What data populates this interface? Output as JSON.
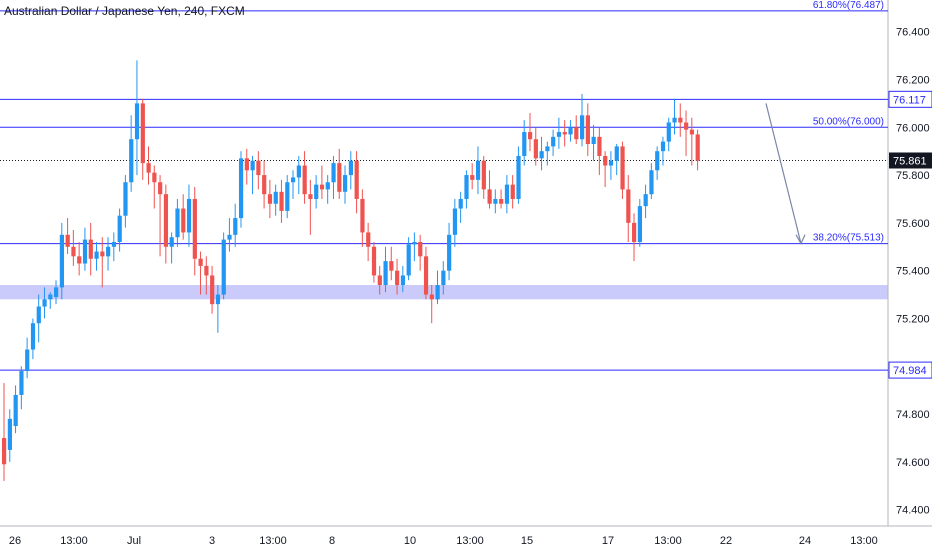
{
  "header": {
    "symbol_title": "Australian Dollar / Japanese Yen, 240, FXCM"
  },
  "colors": {
    "bull": "#2196f3",
    "bear": "#ef5350",
    "level_line": "#2b2bff",
    "zone_fill": "#c5c5fb",
    "current_price_bg": "#131722",
    "axis_text": "#131722",
    "arrow": "#7c86a8"
  },
  "chart_data": {
    "type": "candlestick",
    "x_tick_labels": [
      "26",
      "13:00",
      "Jul",
      "3",
      "13:00",
      "8",
      "10",
      "13:00",
      "15",
      "17",
      "13:00",
      "22",
      "24",
      "13:00"
    ],
    "y_tick_labels": [
      "74.400",
      "74.600",
      "74.800",
      "75.200",
      "75.400",
      "75.600",
      "75.800",
      "76.000",
      "76.200",
      "76.400"
    ],
    "ylim": [
      74.34,
      76.52
    ],
    "horizontal_levels": [
      {
        "name": "resistance",
        "value": 76.117,
        "label": "76.117"
      },
      {
        "name": "fib-50",
        "value": 76.0,
        "label": "50.00%(76.000)"
      },
      {
        "name": "fib-38",
        "value": 75.513,
        "label": "38.20%(75.513)"
      },
      {
        "name": "support",
        "value": 74.984,
        "label": "74.984"
      },
      {
        "name": "fib-61",
        "value": 76.487,
        "label": "61.80%(76.487)"
      }
    ],
    "current_price": {
      "value": 75.861,
      "label": "75.861"
    },
    "zone": {
      "from": 75.28,
      "to": 75.34
    },
    "projection_arrow": {
      "from_value": 76.1,
      "to_value": 75.513
    },
    "candles": [
      [
        74.7,
        74.93,
        74.52,
        74.59
      ],
      [
        74.65,
        74.82,
        74.6,
        74.78
      ],
      [
        74.75,
        74.92,
        74.72,
        74.88
      ],
      [
        74.88,
        75.0,
        74.82,
        74.98
      ],
      [
        74.98,
        75.12,
        74.95,
        75.07
      ],
      [
        75.07,
        75.2,
        75.03,
        75.18
      ],
      [
        75.18,
        75.3,
        75.1,
        75.25
      ],
      [
        75.25,
        75.33,
        75.2,
        75.28
      ],
      [
        75.28,
        75.31,
        75.24,
        75.3
      ],
      [
        75.29,
        75.36,
        75.26,
        75.33
      ],
      [
        75.33,
        75.6,
        75.28,
        75.55
      ],
      [
        75.55,
        75.62,
        75.47,
        75.5
      ],
      [
        75.5,
        75.57,
        75.42,
        75.46
      ],
      [
        75.46,
        75.52,
        75.38,
        75.43
      ],
      [
        75.43,
        75.58,
        75.4,
        75.53
      ],
      [
        75.53,
        75.6,
        75.38,
        75.45
      ],
      [
        75.45,
        75.52,
        75.4,
        75.48
      ],
      [
        75.48,
        75.54,
        75.33,
        75.46
      ],
      [
        75.46,
        75.54,
        75.4,
        75.5
      ],
      [
        75.5,
        75.56,
        75.44,
        75.52
      ],
      [
        75.52,
        75.66,
        75.48,
        75.63
      ],
      [
        75.63,
        75.8,
        75.58,
        75.77
      ],
      [
        75.77,
        76.05,
        75.73,
        75.95
      ],
      [
        75.95,
        76.28,
        75.8,
        76.1
      ],
      [
        76.1,
        76.12,
        75.78,
        75.85
      ],
      [
        75.85,
        75.92,
        75.76,
        75.81
      ],
      [
        75.81,
        75.84,
        75.66,
        75.77
      ],
      [
        75.77,
        75.8,
        75.46,
        75.72
      ],
      [
        75.72,
        75.76,
        75.43,
        75.5
      ],
      [
        75.5,
        75.56,
        75.43,
        75.54
      ],
      [
        75.54,
        75.7,
        75.5,
        75.66
      ],
      [
        75.66,
        75.72,
        75.53,
        75.56
      ],
      [
        75.56,
        75.76,
        75.5,
        75.7
      ],
      [
        75.7,
        75.75,
        75.38,
        75.45
      ],
      [
        75.45,
        75.48,
        75.3,
        75.42
      ],
      [
        75.42,
        75.46,
        75.3,
        75.38
      ],
      [
        75.38,
        75.42,
        75.22,
        75.26
      ],
      [
        75.26,
        75.34,
        75.14,
        75.3
      ],
      [
        75.3,
        75.56,
        75.28,
        75.53
      ],
      [
        75.53,
        75.62,
        75.48,
        75.55
      ],
      [
        75.55,
        75.68,
        75.5,
        75.62
      ],
      [
        75.62,
        75.9,
        75.58,
        75.87
      ],
      [
        75.87,
        75.91,
        75.76,
        75.82
      ],
      [
        75.82,
        75.88,
        75.72,
        75.86
      ],
      [
        75.86,
        75.9,
        75.74,
        75.8
      ],
      [
        75.8,
        75.86,
        75.66,
        75.72
      ],
      [
        75.72,
        75.78,
        75.62,
        75.68
      ],
      [
        75.68,
        75.76,
        75.63,
        75.73
      ],
      [
        75.73,
        75.78,
        75.6,
        75.65
      ],
      [
        75.65,
        75.8,
        75.62,
        75.77
      ],
      [
        75.77,
        75.82,
        75.7,
        75.79
      ],
      [
        75.79,
        75.88,
        75.72,
        75.84
      ],
      [
        75.84,
        75.9,
        75.68,
        75.72
      ],
      [
        75.72,
        75.78,
        75.55,
        75.7
      ],
      [
        75.7,
        75.8,
        75.66,
        75.76
      ],
      [
        75.76,
        75.84,
        75.7,
        75.74
      ],
      [
        75.74,
        75.8,
        75.68,
        75.77
      ],
      [
        75.77,
        75.88,
        75.7,
        75.85
      ],
      [
        75.85,
        75.91,
        75.7,
        75.73
      ],
      [
        75.73,
        75.84,
        75.68,
        75.8
      ],
      [
        75.8,
        75.9,
        75.74,
        75.86
      ],
      [
        75.86,
        75.9,
        75.64,
        75.7
      ],
      [
        75.7,
        75.74,
        75.5,
        75.56
      ],
      [
        75.56,
        75.6,
        75.44,
        75.5
      ],
      [
        75.5,
        75.52,
        75.35,
        75.38
      ],
      [
        75.38,
        75.42,
        75.3,
        75.34
      ],
      [
        75.34,
        75.5,
        75.31,
        75.44
      ],
      [
        75.44,
        75.5,
        75.36,
        75.4
      ],
      [
        75.4,
        75.45,
        75.3,
        75.34
      ],
      [
        75.34,
        75.42,
        75.31,
        75.38
      ],
      [
        75.38,
        75.54,
        75.36,
        75.51
      ],
      [
        75.51,
        75.56,
        75.44,
        75.52
      ],
      [
        75.52,
        75.55,
        75.4,
        75.46
      ],
      [
        75.46,
        75.5,
        75.28,
        75.3
      ],
      [
        75.3,
        75.34,
        75.18,
        75.28
      ],
      [
        75.28,
        75.4,
        75.26,
        75.34
      ],
      [
        75.34,
        75.44,
        75.3,
        75.4
      ],
      [
        75.4,
        75.6,
        75.36,
        75.55
      ],
      [
        75.55,
        75.7,
        75.5,
        75.66
      ],
      [
        75.66,
        75.73,
        75.6,
        75.7
      ],
      [
        75.7,
        75.82,
        75.66,
        75.8
      ],
      [
        75.8,
        75.85,
        75.74,
        75.78
      ],
      [
        75.78,
        75.92,
        75.72,
        75.86
      ],
      [
        75.86,
        75.88,
        75.7,
        75.74
      ],
      [
        75.74,
        75.82,
        75.66,
        75.68
      ],
      [
        75.68,
        75.74,
        75.64,
        75.7
      ],
      [
        75.7,
        75.74,
        75.66,
        75.68
      ],
      [
        75.68,
        75.8,
        75.64,
        75.76
      ],
      [
        75.76,
        75.8,
        75.66,
        75.7
      ],
      [
        75.7,
        75.92,
        75.68,
        75.88
      ],
      [
        75.88,
        76.03,
        75.84,
        75.98
      ],
      [
        75.98,
        76.06,
        75.9,
        75.95
      ],
      [
        75.95,
        76.0,
        75.84,
        75.87
      ],
      [
        75.87,
        75.96,
        75.82,
        75.9
      ],
      [
        75.9,
        75.94,
        75.84,
        75.92
      ],
      [
        75.92,
        75.99,
        75.88,
        75.96
      ],
      [
        75.96,
        76.04,
        75.91,
        75.98
      ],
      [
        75.98,
        76.03,
        75.92,
        75.97
      ],
      [
        75.97,
        76.03,
        75.94,
        76.0
      ],
      [
        76.0,
        76.05,
        75.93,
        75.95
      ],
      [
        75.95,
        76.14,
        75.92,
        76.05
      ],
      [
        76.05,
        76.1,
        75.88,
        75.93
      ],
      [
        75.93,
        76.01,
        75.86,
        75.96
      ],
      [
        75.96,
        76.0,
        75.8,
        75.88
      ],
      [
        75.88,
        75.9,
        75.75,
        75.84
      ],
      [
        75.84,
        75.9,
        75.78,
        75.86
      ],
      [
        75.86,
        75.93,
        75.8,
        75.92
      ],
      [
        75.92,
        75.94,
        75.7,
        75.74
      ],
      [
        75.74,
        75.8,
        75.52,
        75.6
      ],
      [
        75.6,
        75.64,
        75.44,
        75.52
      ],
      [
        75.52,
        75.7,
        75.5,
        75.67
      ],
      [
        75.67,
        75.76,
        75.62,
        75.72
      ],
      [
        75.72,
        75.85,
        75.7,
        75.82
      ],
      [
        75.82,
        75.92,
        75.78,
        75.9
      ],
      [
        75.9,
        75.96,
        75.84,
        75.94
      ],
      [
        75.94,
        76.04,
        75.9,
        76.02
      ],
      [
        76.02,
        76.12,
        75.97,
        76.04
      ],
      [
        76.04,
        76.1,
        75.96,
        76.02
      ],
      [
        76.02,
        76.07,
        75.88,
        75.99
      ],
      [
        75.99,
        76.04,
        75.84,
        75.97
      ],
      [
        75.97,
        75.99,
        75.82,
        75.86
      ]
    ]
  }
}
